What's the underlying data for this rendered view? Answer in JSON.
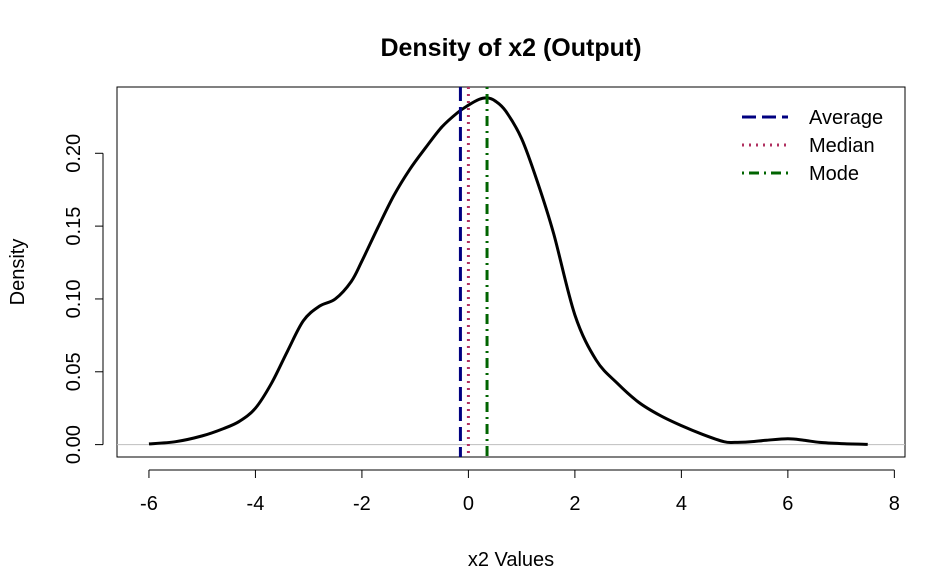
{
  "chart_data": {
    "type": "line",
    "title": "Density of x2 (Output)",
    "xlabel": "x2 Values",
    "ylabel": "Density",
    "xlim": [
      -6.6,
      8.2
    ],
    "ylim": [
      -0.0085,
      0.2455
    ],
    "x_ticks": [
      -6,
      -4,
      -2,
      0,
      2,
      4,
      6,
      8
    ],
    "y_ticks": [
      0.0,
      0.05,
      0.1,
      0.15,
      0.2
    ],
    "x_tick_labels": [
      "-6",
      "-4",
      "-2",
      "0",
      "2",
      "4",
      "6",
      "8"
    ],
    "y_tick_labels": [
      "0.00",
      "0.05",
      "0.10",
      "0.15",
      "0.20"
    ],
    "grid": false,
    "baseline_y": 0,
    "series": [
      {
        "color": "#000000",
        "x": [
          -6.0,
          -5.5,
          -5.0,
          -4.6,
          -4.3,
          -4.0,
          -3.7,
          -3.4,
          -3.1,
          -2.8,
          -2.5,
          -2.2,
          -2.0,
          -1.7,
          -1.4,
          -1.1,
          -0.8,
          -0.5,
          -0.2,
          0.0,
          0.2,
          0.35,
          0.5,
          0.7,
          1.0,
          1.3,
          1.6,
          2.0,
          2.4,
          2.8,
          3.2,
          3.6,
          4.0,
          4.4,
          4.8,
          5.0,
          5.3,
          5.6,
          6.0,
          6.3,
          6.6,
          7.0,
          7.5
        ],
        "y": [
          0.0005,
          0.002,
          0.006,
          0.011,
          0.016,
          0.025,
          0.042,
          0.064,
          0.085,
          0.095,
          0.1,
          0.112,
          0.126,
          0.149,
          0.171,
          0.189,
          0.204,
          0.218,
          0.228,
          0.233,
          0.237,
          0.238,
          0.236,
          0.229,
          0.21,
          0.18,
          0.145,
          0.089,
          0.058,
          0.042,
          0.029,
          0.02,
          0.013,
          0.007,
          0.002,
          0.0015,
          0.002,
          0.003,
          0.004,
          0.003,
          0.0015,
          0.0007,
          0.0002
        ]
      }
    ],
    "vlines": [
      {
        "name": "Average",
        "x": -0.15,
        "color": "#000080",
        "style": "dashed"
      },
      {
        "name": "Median",
        "x": 0.0,
        "color": "#b03060",
        "style": "dotted"
      },
      {
        "name": "Mode",
        "x": 0.35,
        "color": "#006400",
        "style": "dotdash"
      }
    ],
    "legend": {
      "placement": "top-right",
      "entries": [
        "Average",
        "Median",
        "Mode"
      ]
    }
  }
}
